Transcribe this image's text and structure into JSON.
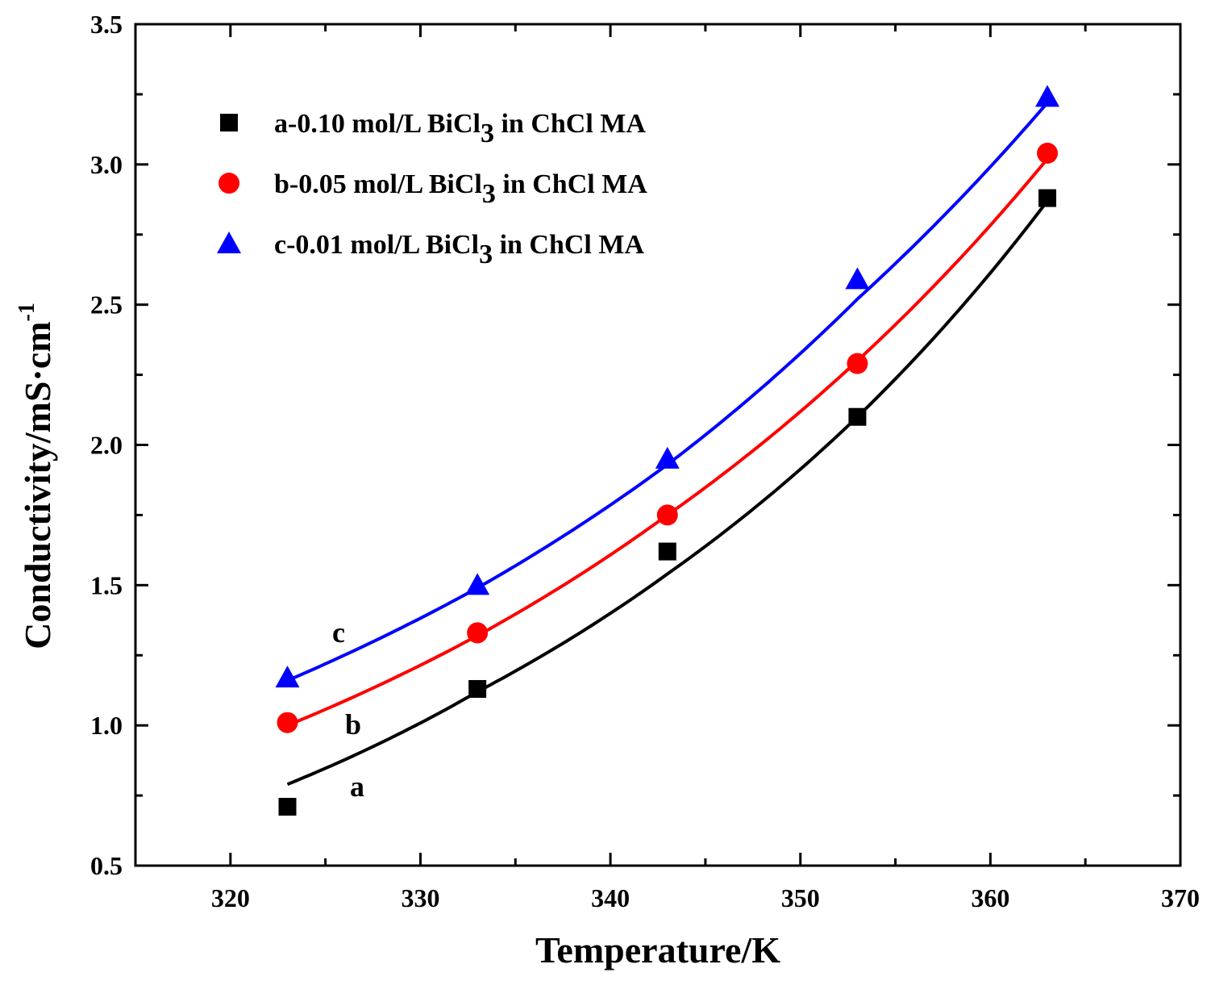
{
  "chart_data": {
    "type": "scatter",
    "title": "",
    "xlabel": "Temperature/K",
    "ylabel": "Conductivity/mS·cm",
    "ylabel_sup": "-1",
    "xlim": [
      315,
      370
    ],
    "ylim": [
      0.5,
      3.5
    ],
    "xticks": [
      320,
      330,
      340,
      350,
      360,
      370
    ],
    "yticks": [
      0.5,
      1.0,
      1.5,
      2.0,
      2.5,
      3.0,
      3.5
    ],
    "xtick_labels": [
      "320",
      "330",
      "340",
      "350",
      "360",
      "370"
    ],
    "ytick_labels": [
      "0.5",
      "1.0",
      "1.5",
      "2.0",
      "2.5",
      "3.0",
      "3.5"
    ],
    "legend_position": "top-left",
    "series": [
      {
        "name": "a-0.10 mol/L BiCl3 in ChCl MA",
        "legend_main": "a-0.10 mol/L BiCl",
        "legend_sub": "3",
        "legend_tail": " in ChCl MA",
        "curve_label": "a",
        "marker": "square",
        "color": "#000000",
        "x": [
          323,
          333,
          343,
          353,
          363
        ],
        "y": [
          0.71,
          1.13,
          1.62,
          2.1,
          2.88
        ],
        "fit": [
          0.79,
          1.12,
          1.54,
          2.1,
          2.87
        ]
      },
      {
        "name": "b-0.05 mol/L BiCl3 in ChCl MA",
        "legend_main": "b-0.05 mol/L BiCl",
        "legend_sub": "3",
        "legend_tail": " in ChCl MA",
        "curve_label": "b",
        "marker": "circle",
        "color": "#ff0000",
        "x": [
          323,
          333,
          343,
          353,
          363
        ],
        "y": [
          1.01,
          1.33,
          1.75,
          2.29,
          3.04
        ],
        "fit": [
          1.0,
          1.32,
          1.75,
          2.3,
          3.02
        ]
      },
      {
        "name": "c-0.01 mol/L BiCl3 in ChCl MA",
        "legend_main": "c-0.01 mol/L BiCl",
        "legend_sub": "3",
        "legend_tail": " in ChCl MA",
        "curve_label": "c",
        "marker": "triangle",
        "color": "#0000ff",
        "x": [
          323,
          333,
          343,
          353,
          363
        ],
        "y": [
          1.17,
          1.5,
          1.95,
          2.59,
          3.24
        ],
        "fit": [
          1.16,
          1.49,
          1.93,
          2.52,
          3.22
        ]
      }
    ]
  }
}
